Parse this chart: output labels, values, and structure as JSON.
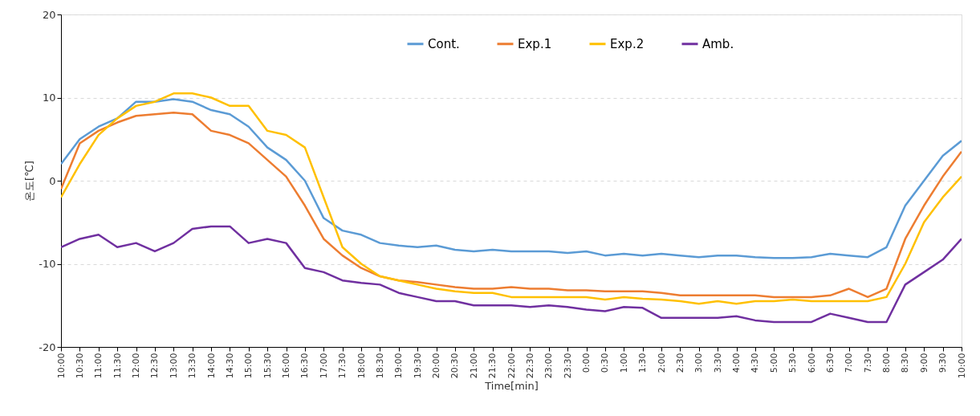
{
  "chart_data": {
    "type": "line",
    "xlabel": "Time[min]",
    "ylabel": "온도[℃]",
    "categories": [
      "10:00",
      "10:30",
      "11:00",
      "11:30",
      "12:00",
      "12:30",
      "13:00",
      "13:30",
      "14:00",
      "14:30",
      "15:00",
      "15:30",
      "16:00",
      "16:30",
      "17:00",
      "17:30",
      "18:00",
      "18:30",
      "19:00",
      "19:30",
      "20:00",
      "20:30",
      "21:00",
      "21:30",
      "22:00",
      "22:30",
      "23:00",
      "23:30",
      "0:00",
      "0:30",
      "1:00",
      "1:30",
      "2:00",
      "2:30",
      "3:00",
      "3:30",
      "4:00",
      "4:30",
      "5:00",
      "5:30",
      "6:00",
      "6:30",
      "7:00",
      "7:30",
      "8:00",
      "8:30",
      "9:00",
      "9:30",
      "10:00"
    ],
    "ylim": [
      -20,
      20
    ],
    "yticks": [
      -20,
      -10,
      0,
      10,
      20
    ],
    "grid": "y",
    "legend": "top right",
    "line_style": "solid",
    "marker": "none",
    "series": [
      {
        "name": "Cont.",
        "color": "#5b9bd5",
        "values": [
          2,
          5,
          6.5,
          7.5,
          9.5,
          9.5,
          9.8,
          9.5,
          8.5,
          8,
          6.5,
          4,
          2.5,
          0,
          -4.5,
          -6,
          -6.5,
          -7.5,
          -7.8,
          -8,
          -7.8,
          -8.3,
          -8.5,
          -8.3,
          -8.5,
          -8.5,
          -8.5,
          -8.7,
          -8.5,
          -9,
          -8.8,
          -9,
          -8.8,
          -9,
          -9.2,
          -9,
          -9,
          -9.2,
          -9.3,
          -9.3,
          -9.2,
          -8.8,
          -9,
          -9.2,
          -8,
          -3,
          0,
          3,
          4.8
        ]
      },
      {
        "name": "Exp.1",
        "color": "#ed7d31",
        "values": [
          -1,
          4.5,
          6,
          7,
          7.8,
          8,
          8.2,
          8,
          6,
          5.5,
          4.5,
          2.5,
          0.5,
          -3,
          -7,
          -9,
          -10.5,
          -11.5,
          -12,
          -12.2,
          -12.5,
          -12.8,
          -13,
          -13,
          -12.8,
          -13,
          -13,
          -13.2,
          -13.2,
          -13.3,
          -13.3,
          -13.3,
          -13.5,
          -13.8,
          -13.8,
          -13.8,
          -13.8,
          -13.8,
          -14,
          -14,
          -14,
          -13.8,
          -13,
          -14,
          -13,
          -7,
          -3,
          0.5,
          3.5
        ]
      },
      {
        "name": "Exp.2",
        "color": "#ffc000",
        "values": [
          -2,
          2,
          5.5,
          7.5,
          9,
          9.5,
          10.5,
          10.5,
          10,
          9,
          9,
          6,
          5.5,
          4,
          -2,
          -8,
          -10,
          -11.5,
          -12,
          -12.5,
          -13,
          -13.3,
          -13.5,
          -13.5,
          -14,
          -14,
          -14,
          -14,
          -14,
          -14.3,
          -14,
          -14.2,
          -14.3,
          -14.5,
          -14.8,
          -14.5,
          -14.8,
          -14.5,
          -14.5,
          -14.3,
          -14.5,
          -14.5,
          -14.5,
          -14.5,
          -14,
          -10,
          -5,
          -2,
          0.5
        ]
      },
      {
        "name": "Amb.",
        "color": "#7030a0",
        "values": [
          -8,
          -7,
          -6.5,
          -8,
          -7.5,
          -8.5,
          -7.5,
          -5.8,
          -5.5,
          -5.5,
          -7.5,
          -7,
          -7.5,
          -10.5,
          -11,
          -12,
          -12.3,
          -12.5,
          -13.5,
          -14,
          -14.5,
          -14.5,
          -15,
          -15,
          -15,
          -15.2,
          -15,
          -15.2,
          -15.5,
          -15.7,
          -15.2,
          -15.3,
          -16.5,
          -16.5,
          -16.5,
          -16.5,
          -16.3,
          -16.8,
          -17,
          -17,
          -17,
          -16,
          -16.5,
          -17,
          -17,
          -12.5,
          -11,
          -9.5,
          -7
        ]
      }
    ]
  }
}
